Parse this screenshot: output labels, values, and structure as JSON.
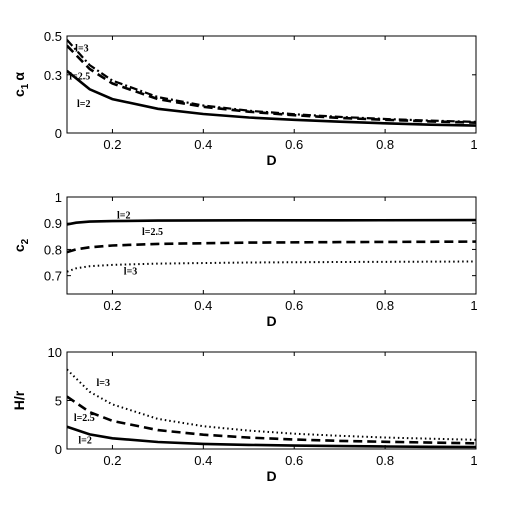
{
  "chart_data": [
    {
      "type": "line",
      "xlabel": "D",
      "ylabel_main": "c",
      "ylabel_sub": "1",
      "ylabel_tail": "α",
      "xlim": [
        0.1,
        1.0
      ],
      "ylim": [
        0,
        0.5
      ],
      "xticks": [
        0.2,
        0.4,
        0.6,
        0.8,
        1.0
      ],
      "xtick_labels": [
        "0.2",
        "0.4",
        "0.6",
        "0.8",
        "1"
      ],
      "yticks": [
        0,
        0.3,
        0.5
      ],
      "ytick_labels": [
        "0",
        "0.3",
        "0.5"
      ],
      "series": [
        {
          "label": "l=2",
          "style": "solid",
          "x": [
            0.1,
            0.15,
            0.2,
            0.3,
            0.4,
            0.5,
            0.6,
            0.7,
            0.8,
            0.9,
            1.0
          ],
          "y": [
            0.32,
            0.225,
            0.175,
            0.125,
            0.098,
            0.08,
            0.068,
            0.058,
            0.05,
            0.043,
            0.038
          ]
        },
        {
          "label": "l=2.5",
          "style": "dashed",
          "x": [
            0.1,
            0.15,
            0.2,
            0.3,
            0.4,
            0.5,
            0.6,
            0.7,
            0.8,
            0.9,
            1.0
          ],
          "y": [
            0.45,
            0.33,
            0.255,
            0.175,
            0.135,
            0.11,
            0.092,
            0.078,
            0.068,
            0.06,
            0.053
          ]
        },
        {
          "label": "l=3",
          "style": "dashdot",
          "x": [
            0.1,
            0.15,
            0.2,
            0.3,
            0.4,
            0.5,
            0.6,
            0.7,
            0.8,
            0.9,
            1.0
          ],
          "y": [
            0.48,
            0.35,
            0.27,
            0.185,
            0.142,
            0.115,
            0.097,
            0.083,
            0.072,
            0.064,
            0.057
          ]
        }
      ],
      "annotations": [
        {
          "text": "l=3",
          "x": 0.118,
          "y": 0.42
        },
        {
          "text": "l=2.5",
          "x": 0.105,
          "y": 0.275
        },
        {
          "text": "l=2",
          "x": 0.122,
          "y": 0.135
        }
      ]
    },
    {
      "type": "line",
      "xlabel": "D",
      "ylabel_main": "c",
      "ylabel_sub": "2",
      "ylabel_tail": "",
      "xlim": [
        0.1,
        1.0
      ],
      "ylim": [
        0.63,
        1.0
      ],
      "xticks": [
        0.2,
        0.4,
        0.6,
        0.8,
        1.0
      ],
      "xtick_labels": [
        "0.2",
        "0.4",
        "0.6",
        "0.8",
        "1"
      ],
      "yticks": [
        0.7,
        0.8,
        0.9,
        1.0
      ],
      "ytick_labels": [
        "0.7",
        "0.8",
        "0.9",
        "1"
      ],
      "series": [
        {
          "label": "l=2",
          "style": "solid",
          "x": [
            0.1,
            0.12,
            0.15,
            0.2,
            0.3,
            0.5,
            0.7,
            1.0
          ],
          "y": [
            0.895,
            0.902,
            0.906,
            0.908,
            0.91,
            0.911,
            0.911,
            0.912
          ]
        },
        {
          "label": "l=2.5",
          "style": "dashed",
          "x": [
            0.1,
            0.12,
            0.15,
            0.2,
            0.3,
            0.5,
            0.7,
            1.0
          ],
          "y": [
            0.79,
            0.8,
            0.808,
            0.815,
            0.821,
            0.826,
            0.828,
            0.83
          ]
        },
        {
          "label": "l=3",
          "style": "dotted",
          "x": [
            0.1,
            0.12,
            0.15,
            0.2,
            0.3,
            0.5,
            0.7,
            1.0
          ],
          "y": [
            0.715,
            0.728,
            0.736,
            0.741,
            0.746,
            0.75,
            0.752,
            0.754
          ]
        }
      ],
      "annotations": [
        {
          "text": "l=2",
          "x": 0.21,
          "y": 0.918
        },
        {
          "text": "l=2.5",
          "x": 0.265,
          "y": 0.855
        },
        {
          "text": "l=3",
          "x": 0.225,
          "y": 0.705
        }
      ]
    },
    {
      "type": "line",
      "xlabel": "D",
      "ylabel_main": "H/r",
      "ylabel_sub": "",
      "ylabel_tail": "",
      "xlim": [
        0.1,
        1.0
      ],
      "ylim": [
        0,
        10
      ],
      "xticks": [
        0.2,
        0.4,
        0.6,
        0.8,
        1.0
      ],
      "xtick_labels": [
        "0.2",
        "0.4",
        "0.6",
        "0.8",
        "1"
      ],
      "yticks": [
        0,
        5,
        10
      ],
      "ytick_labels": [
        "0",
        "5",
        "10"
      ],
      "series": [
        {
          "label": "l=2",
          "style": "solid",
          "x": [
            0.1,
            0.15,
            0.2,
            0.3,
            0.4,
            0.5,
            0.6,
            0.7,
            0.8,
            0.9,
            1.0
          ],
          "y": [
            2.3,
            1.5,
            1.1,
            0.72,
            0.53,
            0.42,
            0.35,
            0.3,
            0.26,
            0.23,
            0.21
          ]
        },
        {
          "label": "l=2.5",
          "style": "dashed",
          "x": [
            0.1,
            0.15,
            0.2,
            0.3,
            0.4,
            0.5,
            0.6,
            0.7,
            0.8,
            0.9,
            1.0
          ],
          "y": [
            5.4,
            3.8,
            2.9,
            1.95,
            1.47,
            1.18,
            0.98,
            0.84,
            0.74,
            0.66,
            0.59
          ]
        },
        {
          "label": "l=3",
          "style": "dotted",
          "x": [
            0.1,
            0.15,
            0.2,
            0.3,
            0.4,
            0.5,
            0.6,
            0.7,
            0.8,
            0.9,
            1.0
          ],
          "y": [
            8.2,
            5.9,
            4.6,
            3.1,
            2.35,
            1.9,
            1.58,
            1.36,
            1.19,
            1.06,
            0.95
          ]
        }
      ],
      "annotations": [
        {
          "text": "l=3",
          "x": 0.165,
          "y": 6.5
        },
        {
          "text": "l=2.5",
          "x": 0.115,
          "y": 2.9
        },
        {
          "text": "l=2",
          "x": 0.125,
          "y": 0.55
        }
      ]
    }
  ]
}
